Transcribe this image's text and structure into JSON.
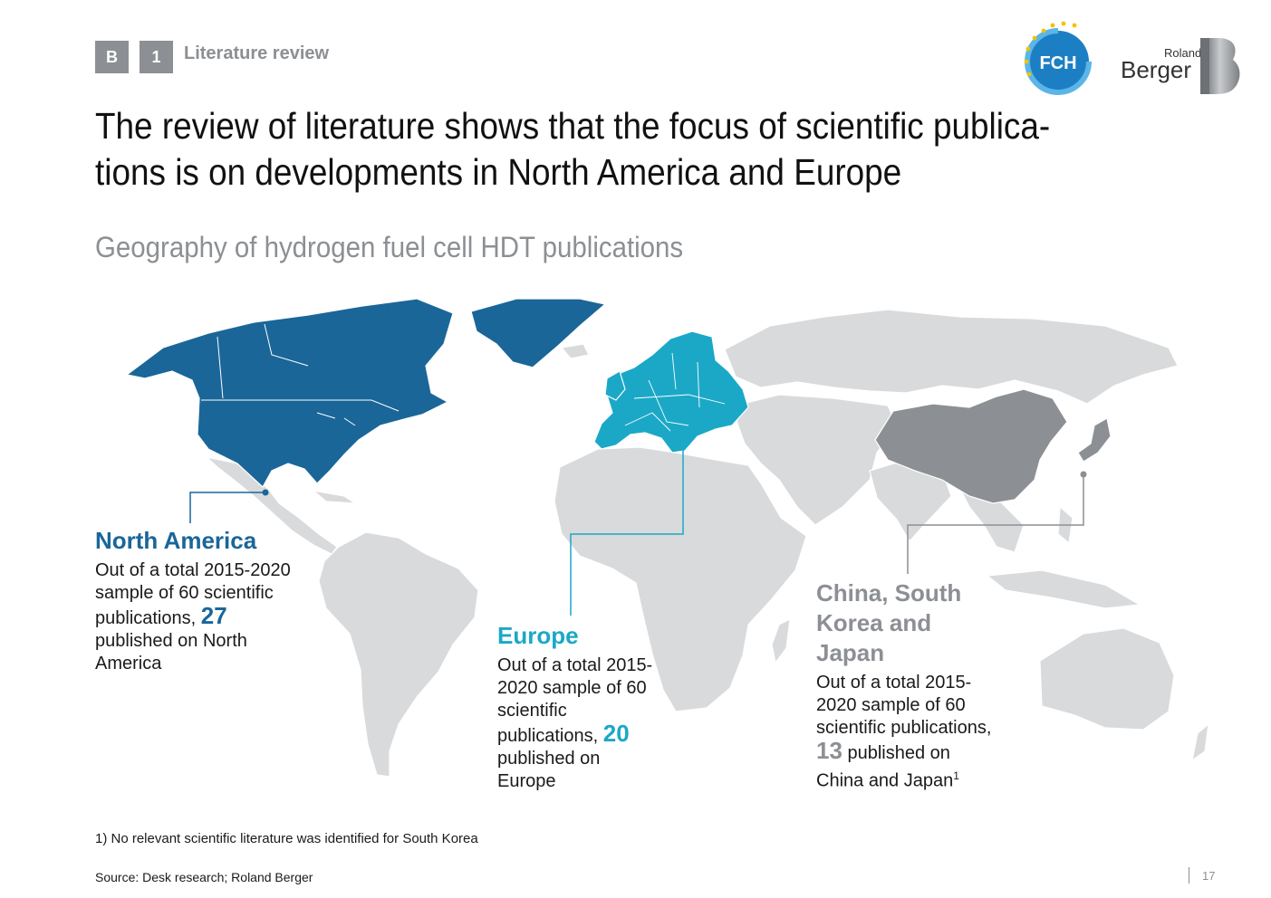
{
  "header": {
    "tag1": "B",
    "tag2": "1",
    "section": "Literature review",
    "fch_logo_text": "FCH",
    "rb_logo_line1": "Roland",
    "rb_logo_line2": "Berger"
  },
  "title": "The review of literature shows that the focus of scientific publica-tions is on developments in North America and Europe",
  "title_line1": "The review of literature shows that the focus of scientific publica-",
  "title_line2": "tions is on developments in North America and Europe",
  "subtitle": "Geography of hydrogen fuel cell HDT publications",
  "colors": {
    "north_america": "#1a6699",
    "europe": "#1ba8c7",
    "asia": "#8c8f93",
    "land": "#d9dadc",
    "grey_text": "#8c8f93"
  },
  "regions": {
    "north_america": {
      "title": "North America",
      "body_pre": "Out of a total 2015-2020 sample of 60 scientific publications,",
      "count": "27",
      "body_post": "published on North America"
    },
    "europe": {
      "title": "Europe",
      "body_pre": "Out of a total 2015-2020 sample of 60 scientific publications,",
      "count": "20",
      "body_post": "published on Europe"
    },
    "asia": {
      "title": "China, South Korea and Japan",
      "body_pre": "Out of a total 2015-2020 sample of 60 scientific publications,",
      "count": "13",
      "body_post": "published on China and Japan",
      "footnote_mark": "1"
    }
  },
  "footnote": "1) No relevant scientific literature was identified for South Korea",
  "source": "Source: Desk research; Roland Berger",
  "page_number": "17"
}
